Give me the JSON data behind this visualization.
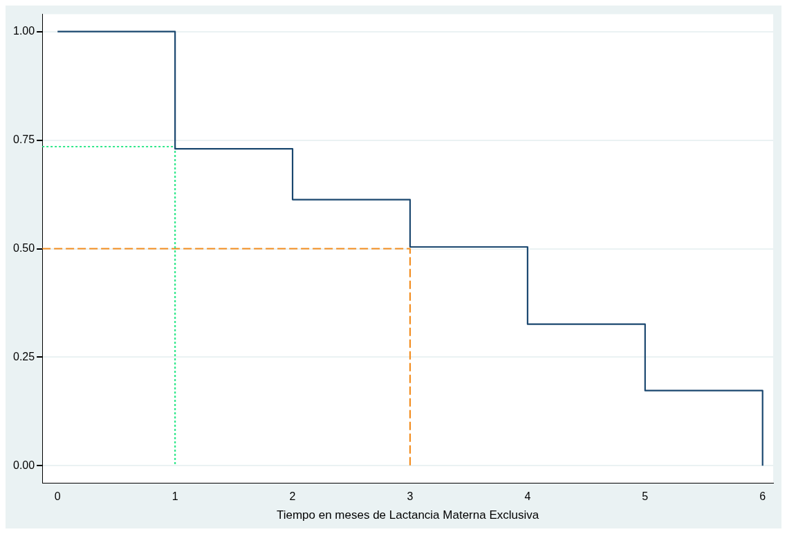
{
  "chart_data": {
    "type": "step",
    "xlabel": "Tiempo en meses de Lactancia Materna Exclusiva",
    "xlim": [
      -0.13,
      6.09
    ],
    "xticks": [
      0,
      1,
      2,
      3,
      4,
      5,
      6
    ],
    "ylim": [
      -0.04,
      1.04
    ],
    "yticks": [
      {
        "value": 0,
        "label": "0.00"
      },
      {
        "value": 0.25,
        "label": "0.25"
      },
      {
        "value": 0.5,
        "label": "0.50"
      },
      {
        "value": 0.75,
        "label": "0.75"
      },
      {
        "value": 1,
        "label": "1.00"
      }
    ],
    "grid": "y",
    "legend": false,
    "series": [
      {
        "type": "step",
        "color": "#1a476f",
        "x": [
          0,
          1,
          2,
          3,
          4,
          5,
          6
        ],
        "values": [
          1,
          0.73,
          0.613,
          0.504,
          0.326,
          0.173,
          0
        ],
        "line_style": "solid"
      },
      {
        "type": "line",
        "color": "#2ee88a",
        "x": [
          -0.13,
          1,
          1
        ],
        "values": [
          0.735,
          0.735,
          0
        ],
        "line_style": "dotted"
      },
      {
        "type": "line",
        "color": "#f28c1e",
        "x": [
          -0.13,
          3,
          3
        ],
        "values": [
          0.5,
          0.5,
          0
        ],
        "line_style": "dashed"
      }
    ]
  }
}
